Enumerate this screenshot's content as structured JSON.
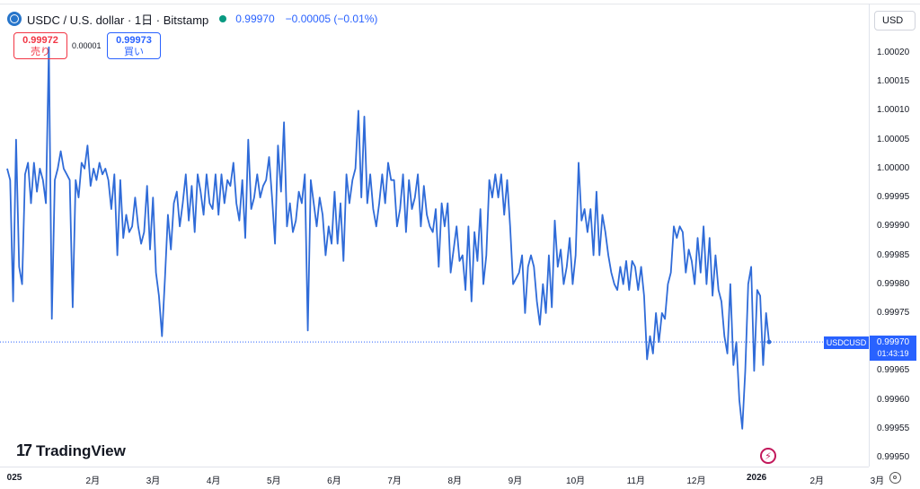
{
  "header": {
    "symbol": "USDC / U.S. dollar · 1日 · Bitstamp",
    "last": "0.99970",
    "change": "−0.00005 (−0.01%)",
    "sell_price": "0.99972",
    "sell_label": "売り",
    "spread": "0.00001",
    "buy_price": "0.99973",
    "buy_label": "買い",
    "currency": "USD",
    "logo_text": "TradingView"
  },
  "price_tag": {
    "symbol": "USDCUSD",
    "price": "0.99970",
    "countdown": "01:43:19"
  },
  "colors": {
    "line": "#2f6bd8",
    "accent": "#2962ff",
    "sell": "#f23645"
  },
  "icons": [
    "usdc-coin-icon",
    "live-dot-icon",
    "bolt-icon",
    "gear-icon",
    "tradingview-logo-icon"
  ],
  "chart_data": {
    "type": "line",
    "title": "",
    "xlabel": "",
    "ylabel": "",
    "ylim": [
      0.9995,
      1.00024
    ],
    "y_ticks": [
      "1.00020",
      "1.00015",
      "1.00010",
      "1.00005",
      "1.00000",
      "0.99995",
      "0.99990",
      "0.99985",
      "0.99980",
      "0.99975",
      "0.99965",
      "0.99960",
      "0.99955",
      "0.99950"
    ],
    "y_tick_values": [
      1.0002,
      1.00015,
      1.0001,
      1.00005,
      1.0,
      0.99995,
      0.9999,
      0.99985,
      0.9998,
      0.99975,
      0.99965,
      0.9996,
      0.99955,
      0.9995
    ],
    "x_ticks": [
      {
        "label": "025",
        "x": 0,
        "bold": true
      },
      {
        "label": "2月",
        "x": 1.3,
        "bold": false
      },
      {
        "label": "3月",
        "x": 2.3,
        "bold": false
      },
      {
        "label": "4月",
        "x": 3.3,
        "bold": false
      },
      {
        "label": "5月",
        "x": 4.3,
        "bold": false
      },
      {
        "label": "6月",
        "x": 5.3,
        "bold": false
      },
      {
        "label": "7月",
        "x": 6.3,
        "bold": false
      },
      {
        "label": "8月",
        "x": 7.3,
        "bold": false
      },
      {
        "label": "9月",
        "x": 8.3,
        "bold": false
      },
      {
        "label": "10月",
        "x": 9.3,
        "bold": false
      },
      {
        "label": "11月",
        "x": 10.3,
        "bold": false
      },
      {
        "label": "12月",
        "x": 11.3,
        "bold": false
      },
      {
        "label": "2026",
        "x": 12.3,
        "bold": true
      },
      {
        "label": "2月",
        "x": 13.3,
        "bold": false
      },
      {
        "label": "3月",
        "x": 14.3,
        "bold": false
      }
    ],
    "last_value": 0.9997,
    "series": [
      {
        "values": [
          1.0,
          0.99998,
          0.99977,
          1.00005,
          0.99983,
          0.9998,
          0.99999,
          1.00001,
          0.99994,
          1.00001,
          0.99996,
          1.0,
          0.99998,
          0.99994,
          1.00021,
          0.99974,
          0.99998,
          1.0,
          1.00003,
          1.0,
          0.99999,
          0.99998,
          0.99976,
          0.99998,
          0.99995,
          1.00001,
          1.0,
          1.00004,
          0.99997,
          1.0,
          0.99998,
          1.00001,
          0.99999,
          1.0,
          0.99998,
          0.99993,
          0.99999,
          0.99985,
          0.99998,
          0.99988,
          0.99992,
          0.99989,
          0.9999,
          0.99995,
          0.9999,
          0.99987,
          0.99989,
          0.99997,
          0.99986,
          0.99995,
          0.99982,
          0.99978,
          0.99971,
          0.99981,
          0.99992,
          0.99986,
          0.99994,
          0.99996,
          0.9999,
          0.99994,
          0.99999,
          0.99991,
          0.99997,
          0.99989,
          0.99999,
          0.99996,
          0.99992,
          0.99999,
          0.99994,
          0.99993,
          0.99999,
          0.99992,
          0.99999,
          0.99994,
          0.99998,
          0.99997,
          1.00001,
          0.99994,
          0.99991,
          0.99998,
          0.99988,
          1.00005,
          0.99993,
          0.99995,
          0.99999,
          0.99995,
          0.99997,
          0.99998,
          1.00002,
          0.99995,
          0.99987,
          1.00004,
          0.99996,
          1.00008,
          0.9999,
          0.99994,
          0.99989,
          0.99991,
          0.99996,
          0.99994,
          0.99999,
          0.99972,
          0.99998,
          0.99994,
          0.9999,
          0.99995,
          0.99992,
          0.99985,
          0.9999,
          0.99987,
          0.99996,
          0.99987,
          0.99994,
          0.99984,
          0.99999,
          0.99994,
          0.99998,
          1.0,
          1.0001,
          0.99995,
          1.00009,
          0.99994,
          0.99999,
          0.99993,
          0.9999,
          0.99994,
          0.99999,
          0.99994,
          1.00001,
          0.99998,
          0.99998,
          0.9999,
          0.99993,
          0.99999,
          0.99989,
          0.99998,
          0.99993,
          0.99995,
          0.99999,
          0.9999,
          0.99997,
          0.99992,
          0.9999,
          0.99989,
          0.99993,
          0.99983,
          0.99994,
          0.9999,
          0.99994,
          0.99982,
          0.99986,
          0.9999,
          0.99984,
          0.99985,
          0.99979,
          0.9999,
          0.99977,
          0.99989,
          0.99984,
          0.99993,
          0.9998,
          0.99985,
          0.99998,
          0.99995,
          0.99999,
          0.99995,
          0.99999,
          0.99992,
          0.99998,
          0.9999,
          0.9998,
          0.99981,
          0.99982,
          0.99985,
          0.99975,
          0.99983,
          0.99985,
          0.99983,
          0.99977,
          0.99973,
          0.9998,
          0.99975,
          0.99985,
          0.99976,
          0.99991,
          0.99983,
          0.99986,
          0.9998,
          0.99983,
          0.99988,
          0.9998,
          0.99985,
          1.00001,
          0.99991,
          0.99993,
          0.99989,
          0.99993,
          0.99985,
          0.99996,
          0.99985,
          0.99992,
          0.99989,
          0.99985,
          0.99982,
          0.9998,
          0.99979,
          0.99983,
          0.9998,
          0.99984,
          0.99979,
          0.99984,
          0.99983,
          0.99979,
          0.99983,
          0.99978,
          0.99967,
          0.99971,
          0.99968,
          0.99975,
          0.9997,
          0.99975,
          0.99974,
          0.9998,
          0.99982,
          0.9999,
          0.99988,
          0.9999,
          0.99989,
          0.99982,
          0.99986,
          0.99984,
          0.9998,
          0.99988,
          0.99982,
          0.9999,
          0.9998,
          0.99988,
          0.99978,
          0.99985,
          0.99979,
          0.99977,
          0.99971,
          0.99968,
          0.9998,
          0.99966,
          0.9997,
          0.9996,
          0.99955,
          0.99965,
          0.9998,
          0.99983,
          0.99965,
          0.99979,
          0.99978,
          0.99966,
          0.99975,
          0.9997
        ]
      }
    ]
  }
}
